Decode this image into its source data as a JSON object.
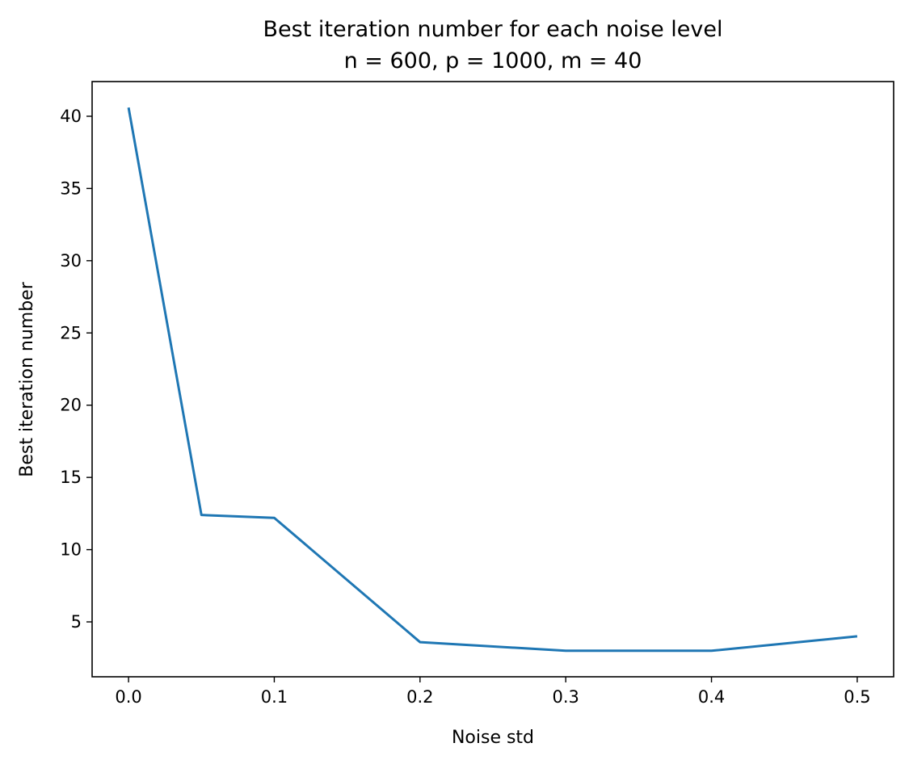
{
  "chart_data": {
    "type": "line",
    "title": "Best iteration number for each noise level",
    "subtitle": "n = 600, p = 1000, m = 40",
    "xlabel": "Noise std",
    "ylabel": "Best iteration number",
    "xlim": [
      -0.025,
      0.525
    ],
    "ylim": [
      1.2,
      42.4
    ],
    "xticks": [
      0.0,
      0.1,
      0.2,
      0.3,
      0.4,
      0.5
    ],
    "xtick_labels": [
      "0.0",
      "0.1",
      "0.2",
      "0.3",
      "0.4",
      "0.5"
    ],
    "yticks": [
      5,
      10,
      15,
      20,
      25,
      30,
      35,
      40
    ],
    "ytick_labels": [
      "5",
      "10",
      "15",
      "20",
      "25",
      "30",
      "35",
      "40"
    ],
    "grid": false,
    "series": [
      {
        "x": [
          0.0,
          0.05,
          0.1,
          0.2,
          0.3,
          0.4,
          0.5
        ],
        "y": [
          40.6,
          12.4,
          12.2,
          3.6,
          3.0,
          3.0,
          4.0
        ],
        "color": "#1f77b4"
      }
    ]
  }
}
